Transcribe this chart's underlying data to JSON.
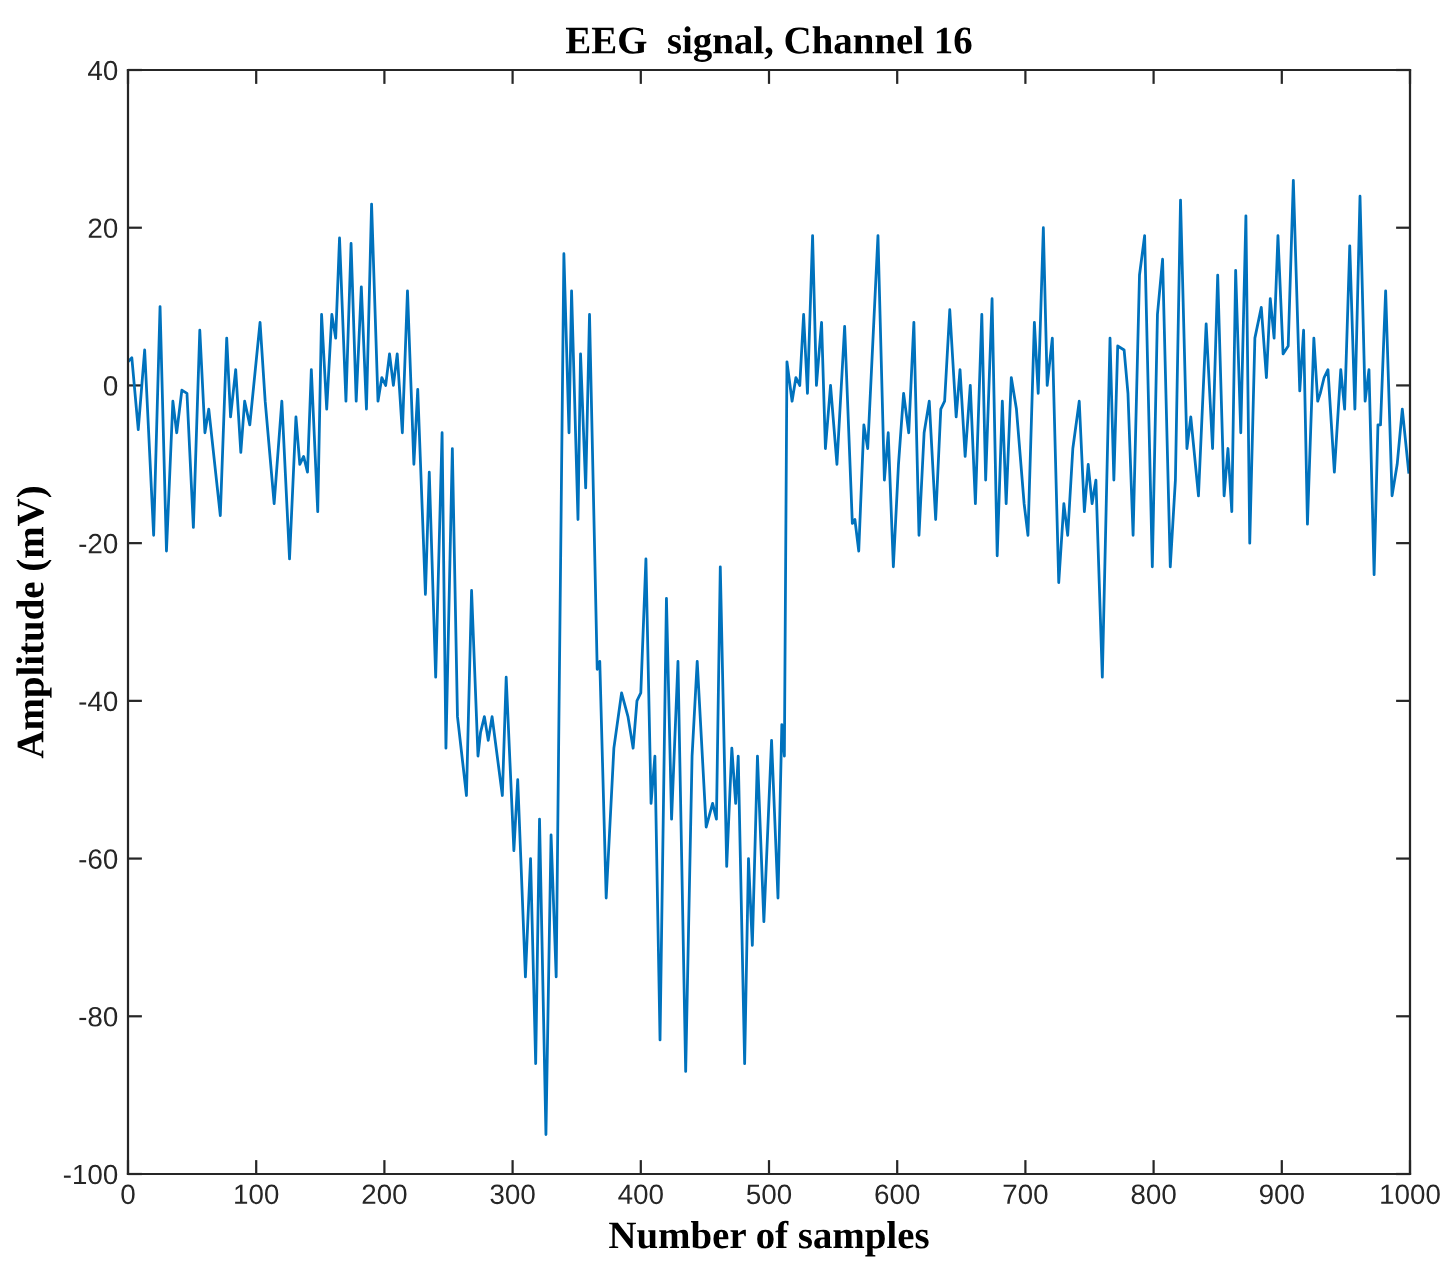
{
  "chart_data": {
    "type": "line",
    "title": "EEG  signal, Channel 16",
    "xlabel": "Number of samples",
    "ylabel": "Amplitude (mV)",
    "x": [
      0,
      3,
      8,
      13,
      20,
      25,
      30,
      35,
      38,
      42,
      46,
      51,
      56,
      60,
      63,
      72,
      77,
      80,
      84,
      88,
      91,
      95,
      103,
      107,
      114,
      120,
      126,
      131,
      134,
      137,
      140,
      143,
      148,
      151,
      155,
      159,
      162,
      165,
      170,
      174,
      178,
      182,
      186,
      190,
      195,
      198,
      201,
      204,
      207,
      210,
      214,
      218,
      223,
      226,
      232,
      235,
      240,
      245,
      248,
      253,
      257,
      264,
      268,
      273,
      275,
      278,
      281,
      284,
      292,
      295,
      301,
      304,
      310,
      314,
      318,
      321,
      326,
      330,
      334,
      340,
      344,
      346,
      351,
      353,
      357,
      360,
      366,
      368,
      373,
      379,
      385,
      390,
      394,
      397,
      400,
      404,
      408,
      411,
      415,
      420,
      424,
      429,
      435,
      440,
      444,
      451,
      456,
      459,
      462,
      467,
      471,
      474,
      476,
      481,
      484,
      487,
      491,
      496,
      502,
      507,
      510,
      512,
      514,
      518,
      521,
      524,
      527,
      530,
      534,
      537,
      541,
      544,
      548,
      553,
      559,
      565,
      567,
      570,
      574,
      577,
      585,
      590,
      593,
      597,
      601,
      605,
      609,
      613,
      617,
      621,
      625,
      630,
      634,
      637,
      641,
      646,
      649,
      653,
      657,
      661,
      666,
      669,
      674,
      678,
      682,
      685,
      689,
      693,
      699,
      702,
      707,
      710,
      714,
      717,
      721,
      726,
      730,
      733,
      737,
      742,
      746,
      749,
      752,
      755,
      760,
      766,
      769,
      772,
      777,
      780,
      784,
      789,
      793,
      799,
      803,
      807,
      813,
      817,
      821,
      826,
      829,
      835,
      841,
      846,
      850,
      855,
      858,
      861,
      864,
      868,
      872,
      875,
      879,
      884,
      888,
      891,
      894,
      897,
      901,
      905,
      909,
      914,
      917,
      920,
      925,
      928,
      930,
      933,
      936,
      941,
      946,
      949,
      953,
      957,
      961,
      965,
      968,
      972,
      975,
      977,
      981,
      986,
      990,
      994,
      999
    ],
    "values": [
      3,
      3.5,
      -5.6,
      4.5,
      -19,
      10,
      -21,
      -2,
      -6,
      -0.6,
      -1,
      -18,
      7,
      -6,
      -3,
      -16.5,
      6,
      -4,
      2,
      -8.5,
      -2,
      -5,
      8,
      -2,
      -15,
      -2,
      -22,
      -4,
      -10,
      -9,
      -11,
      2,
      -16,
      9,
      -3,
      9,
      6,
      18.7,
      -2,
      18,
      -2,
      12.5,
      -3,
      23,
      -2,
      1,
      0,
      4,
      0,
      4,
      -6,
      12,
      -10,
      -0.5,
      -26.5,
      -11,
      -37,
      -6,
      -46,
      -8,
      -42,
      -52,
      -26,
      -47,
      -44,
      -42,
      -45,
      -42,
      -52,
      -37,
      -59,
      -50,
      -75,
      -60,
      -86,
      -55,
      -95,
      -57,
      -75,
      16.7,
      -6,
      12,
      -17,
      4,
      -13,
      9,
      -36,
      -35,
      -65,
      -46,
      -39,
      -42,
      -46,
      -40,
      -39,
      -22,
      -53,
      -47,
      -83,
      -27,
      -55,
      -35,
      -87,
      -47,
      -35,
      -56,
      -53,
      -55,
      -23,
      -61,
      -46,
      -53,
      -47,
      -86,
      -60,
      -71,
      -47,
      -68,
      -45,
      -65,
      -43,
      -47,
      3,
      -2,
      1,
      0,
      9,
      -1,
      19,
      0,
      8,
      -8,
      0,
      -10,
      7.5,
      -17.5,
      -17,
      -21,
      -5,
      -8,
      19,
      -12,
      -6,
      -23,
      -10,
      -1,
      -6,
      8,
      -19,
      -6,
      -2,
      -17,
      -3,
      -2,
      9.6,
      -4,
      2,
      -9,
      0,
      -15,
      9,
      -12,
      11,
      -21.6,
      -2,
      -15,
      1,
      -3,
      -15,
      -19,
      8,
      -1,
      20,
      0,
      6,
      -25,
      -15,
      -19,
      -8,
      -2,
      -16,
      -10,
      -15,
      -12,
      -37,
      6,
      -12,
      5,
      4.5,
      -1,
      -19,
      14,
      19,
      -23,
      9,
      16,
      -23,
      -12,
      23.5,
      -8,
      -4,
      -14,
      7.8,
      -8,
      14,
      -14,
      -8,
      -16,
      14.6,
      -6,
      21.5,
      -20,
      6,
      9.9,
      1,
      11,
      6,
      19,
      4,
      5,
      26,
      -0.7,
      7,
      -17.6,
      6,
      -2,
      -1,
      1,
      2,
      -11,
      2,
      -3,
      17.7,
      -3,
      24,
      -2,
      2,
      -24,
      -5,
      -5,
      12,
      -14,
      -10,
      -3,
      -11
    ],
    "color": "#0072bd",
    "xlim": [
      0,
      1000
    ],
    "ylim": [
      -100,
      40
    ],
    "xticks": [
      0,
      100,
      200,
      300,
      400,
      500,
      600,
      700,
      800,
      900,
      1000
    ],
    "yticks": [
      -100,
      -80,
      -60,
      -40,
      -20,
      0,
      20,
      40
    ],
    "grid": false,
    "legend": false,
    "marker": "none",
    "line_style": "solid"
  }
}
